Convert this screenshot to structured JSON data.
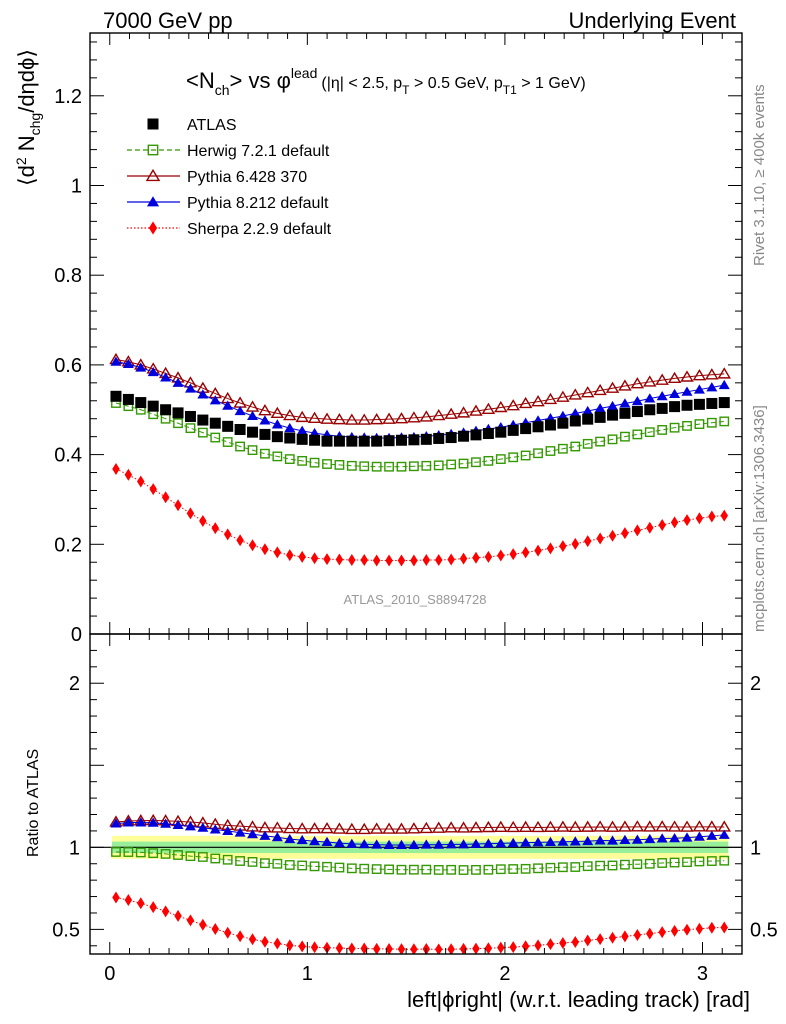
{
  "header": {
    "left": "7000 GeV pp",
    "right": "Underlying Event",
    "side_rivet": "Rivet 3.1.10, ≥ 400k events",
    "side_mcplots": "mcplots.cern.ch [arXiv:1306.3436]"
  },
  "chart_data": {
    "type": "scatter",
    "title": "<N_ch> vs φ^lead (|η| < 2.5, p_T > 0.5 GeV, p_T1 > 1 GeV)",
    "title_parts": {
      "a": "<N",
      "a_sub": "ch",
      "b": "> vs ",
      "phi": "φ",
      "phi_sup": "lead",
      "cond1": "(|η| < 2.5, p",
      "cond1_sub": "T",
      "cond2": " > 0.5 GeV, p",
      "cond2_sub": "T1",
      "cond3": " > 1 GeV)"
    },
    "ylabel_main": "⟨d² N_chg/dηdϕ⟩",
    "ylabel_parts": {
      "a": "⟨d",
      "a_sup": "2",
      "b": " N",
      "b_sub": "chg",
      "c": "/dηdϕ⟩"
    },
    "ylabel_ratio": "Ratio to ATLAS",
    "xlabel": "left|ϕright| (w.r.t. leading track) [rad]",
    "watermark": "ATLAS_2010_S8894728",
    "xlim": [
      -0.1,
      3.2
    ],
    "ylim_main": [
      0,
      1.34
    ],
    "ylim_ratio": [
      0.35,
      2.3
    ],
    "x_ticks": [
      {
        "v": 0,
        "label": "0"
      },
      {
        "v": 1,
        "label": "1"
      },
      {
        "v": 2,
        "label": "2"
      },
      {
        "v": 3,
        "label": "3"
      }
    ],
    "y_ticks_main": [
      {
        "v": 0,
        "label": "0"
      },
      {
        "v": 0.2,
        "label": "0.2"
      },
      {
        "v": 0.4,
        "label": "0.4"
      },
      {
        "v": 0.6,
        "label": "0.6"
      },
      {
        "v": 0.8,
        "label": "0.8"
      },
      {
        "v": 1,
        "label": "1"
      },
      {
        "v": 1.2,
        "label": "1.2"
      }
    ],
    "y_ticks_ratio": [
      {
        "v": 0.5,
        "label": "0.5"
      },
      {
        "v": 1,
        "label": "1"
      },
      {
        "v": 2,
        "label": "2"
      }
    ],
    "band_sigma": 0.035,
    "x": [
      0.0314,
      0.0942,
      0.157,
      0.2199,
      0.2827,
      0.3456,
      0.4084,
      0.4712,
      0.5341,
      0.5969,
      0.6597,
      0.7226,
      0.7854,
      0.8482,
      0.9111,
      0.9739,
      1.0367,
      1.0996,
      1.1624,
      1.2252,
      1.2881,
      1.3509,
      1.4137,
      1.4765,
      1.5394,
      1.6022,
      1.665,
      1.7279,
      1.7907,
      1.8535,
      1.9164,
      1.9792,
      2.042,
      2.1049,
      2.1677,
      2.2305,
      2.2934,
      2.3562,
      2.419,
      2.4819,
      2.5447,
      2.6075,
      2.6704,
      2.7332,
      2.796,
      2.8588,
      2.9217,
      2.9845,
      3.0473,
      3.1102
    ],
    "series": [
      {
        "name": "ATLAS",
        "color": "#000000",
        "marker": "square-filled",
        "line": "none",
        "values": [
          0.53,
          0.523,
          0.516,
          0.508,
          0.5,
          0.493,
          0.485,
          0.477,
          0.47,
          0.463,
          0.456,
          0.45,
          0.445,
          0.44,
          0.437,
          0.434,
          0.432,
          0.43,
          0.43,
          0.43,
          0.43,
          0.43,
          0.431,
          0.432,
          0.433,
          0.434,
          0.436,
          0.438,
          0.441,
          0.444,
          0.447,
          0.45,
          0.454,
          0.458,
          0.462,
          0.466,
          0.47,
          0.475,
          0.479,
          0.483,
          0.488,
          0.492,
          0.496,
          0.5,
          0.503,
          0.507,
          0.51,
          0.512,
          0.514,
          0.516
        ]
      },
      {
        "name": "Herwig 7.2.1 default",
        "color": "#339900",
        "marker": "square-open",
        "line": "dashed",
        "values": [
          0.515,
          0.508,
          0.5,
          0.49,
          0.48,
          0.47,
          0.459,
          0.449,
          0.438,
          0.428,
          0.418,
          0.41,
          0.402,
          0.396,
          0.39,
          0.386,
          0.382,
          0.379,
          0.377,
          0.375,
          0.374,
          0.373,
          0.373,
          0.373,
          0.374,
          0.375,
          0.376,
          0.378,
          0.38,
          0.383,
          0.386,
          0.39,
          0.394,
          0.398,
          0.403,
          0.408,
          0.413,
          0.418,
          0.424,
          0.429,
          0.434,
          0.44,
          0.445,
          0.45,
          0.455,
          0.46,
          0.464,
          0.468,
          0.471,
          0.474
        ]
      },
      {
        "name": "Pythia 6.428 370",
        "color": "#990000",
        "marker": "triangle-open",
        "line": "solid",
        "values": [
          0.612,
          0.607,
          0.6,
          0.591,
          0.581,
          0.571,
          0.56,
          0.548,
          0.536,
          0.525,
          0.515,
          0.506,
          0.498,
          0.492,
          0.487,
          0.483,
          0.481,
          0.479,
          0.478,
          0.477,
          0.477,
          0.478,
          0.479,
          0.48,
          0.482,
          0.484,
          0.487,
          0.49,
          0.493,
          0.497,
          0.501,
          0.505,
          0.509,
          0.514,
          0.518,
          0.523,
          0.528,
          0.533,
          0.538,
          0.543,
          0.548,
          0.553,
          0.558,
          0.562,
          0.566,
          0.57,
          0.573,
          0.576,
          0.578,
          0.58
        ]
      },
      {
        "name": "Pythia 8.212 default",
        "color": "#0000dd",
        "marker": "triangle-filled",
        "line": "solid",
        "values": [
          0.607,
          0.602,
          0.594,
          0.584,
          0.572,
          0.56,
          0.547,
          0.534,
          0.521,
          0.509,
          0.497,
          0.486,
          0.476,
          0.467,
          0.459,
          0.453,
          0.448,
          0.444,
          0.441,
          0.439,
          0.438,
          0.437,
          0.437,
          0.438,
          0.439,
          0.441,
          0.443,
          0.446,
          0.449,
          0.453,
          0.457,
          0.461,
          0.466,
          0.471,
          0.476,
          0.481,
          0.486,
          0.492,
          0.497,
          0.503,
          0.508,
          0.514,
          0.519,
          0.525,
          0.53,
          0.535,
          0.54,
          0.545,
          0.55,
          0.555
        ]
      },
      {
        "name": "Sherpa 2.2.9 default",
        "color": "#ff0000",
        "marker": "diamond-filled",
        "line": "dotted",
        "values": [
          0.368,
          0.355,
          0.34,
          0.323,
          0.305,
          0.287,
          0.269,
          0.252,
          0.236,
          0.222,
          0.209,
          0.198,
          0.189,
          0.182,
          0.176,
          0.172,
          0.169,
          0.167,
          0.166,
          0.165,
          0.165,
          0.164,
          0.164,
          0.164,
          0.164,
          0.165,
          0.165,
          0.166,
          0.168,
          0.17,
          0.172,
          0.175,
          0.178,
          0.182,
          0.186,
          0.191,
          0.196,
          0.201,
          0.207,
          0.213,
          0.219,
          0.225,
          0.231,
          0.237,
          0.243,
          0.249,
          0.254,
          0.258,
          0.262,
          0.264
        ]
      }
    ]
  }
}
